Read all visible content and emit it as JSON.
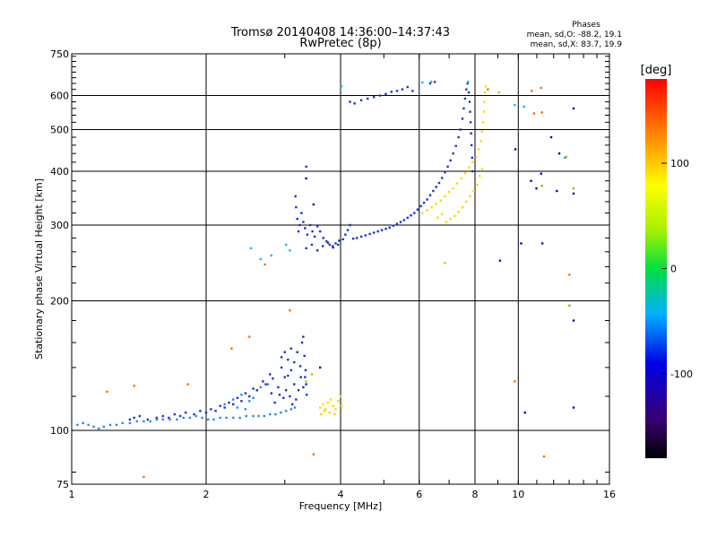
{
  "chart_data": {
    "type": "scatter",
    "title": "Tromsø 20140408 14:36:00–14:37:43",
    "subtitle": "RwPretec (8p)",
    "xlabel": "Frequency [MHz]",
    "ylabel": "Stationary phase Virtual Height [km]",
    "x_scale": "log",
    "y_scale": "log",
    "xlim": [
      1,
      16
    ],
    "ylim": [
      75,
      750
    ],
    "x_ticks": [
      1,
      2,
      4,
      6,
      8,
      10,
      16
    ],
    "x_tick_labels": [
      "1",
      "2",
      "4",
      "6",
      "8",
      "10",
      "16"
    ],
    "x_grid": [
      2,
      4,
      6,
      8,
      10
    ],
    "y_ticks": [
      75,
      100,
      200,
      300,
      400,
      500,
      600,
      750
    ],
    "y_tick_labels": [
      "75",
      "100",
      "200",
      "300",
      "400",
      "500",
      "600",
      "750"
    ],
    "y_grid": [
      100,
      200,
      300,
      400,
      500,
      600
    ],
    "grid": true,
    "stats_header": "Phases",
    "stats_o": "mean, sd,O: -88.2, 19.1",
    "stats_x": "mean, sd,X: 83.7, 19.9",
    "colorbar": {
      "label": "[deg]",
      "range": [
        -180,
        180
      ],
      "ticks": [
        100,
        0,
        -100
      ],
      "tick_labels": [
        "100",
        "0",
        "-100"
      ]
    },
    "series": [
      {
        "color": "#2a8ae0",
        "points": [
          [
            1.03,
            103
          ],
          [
            1.06,
            104
          ],
          [
            1.09,
            103
          ],
          [
            1.12,
            102
          ],
          [
            1.15,
            101
          ],
          [
            1.18,
            102
          ],
          [
            1.22,
            103
          ],
          [
            1.26,
            103
          ],
          [
            1.3,
            104
          ],
          [
            1.35,
            104
          ],
          [
            1.4,
            105
          ],
          [
            1.45,
            105
          ],
          [
            1.5,
            105
          ],
          [
            1.55,
            106
          ],
          [
            1.6,
            106
          ],
          [
            1.66,
            106
          ],
          [
            1.72,
            106
          ],
          [
            1.78,
            107
          ],
          [
            1.84,
            107
          ],
          [
            1.9,
            108
          ],
          [
            1.96,
            107
          ],
          [
            2.02,
            106
          ],
          [
            2.08,
            106
          ],
          [
            2.15,
            107
          ],
          [
            2.22,
            107
          ],
          [
            2.3,
            107
          ],
          [
            2.38,
            107
          ],
          [
            2.46,
            108
          ],
          [
            2.55,
            108
          ],
          [
            2.62,
            108
          ],
          [
            2.7,
            108
          ],
          [
            2.78,
            109
          ],
          [
            2.86,
            109
          ],
          [
            2.94,
            110
          ],
          [
            3.02,
            111
          ],
          [
            3.1,
            112
          ],
          [
            3.16,
            113
          ],
          [
            2.2,
            115
          ],
          [
            2.3,
            118
          ],
          [
            2.4,
            121
          ],
          [
            2.5,
            117
          ],
          [
            2.6,
            124
          ],
          [
            2.45,
            112
          ],
          [
            2.35,
            113
          ],
          [
            2.55,
            119
          ],
          [
            2.65,
            126
          ],
          [
            2.75,
            128
          ]
        ]
      },
      {
        "color": "#1e2fd6",
        "points": [
          [
            1.35,
            106
          ],
          [
            1.38,
            107
          ],
          [
            1.42,
            108
          ],
          [
            1.48,
            106
          ],
          [
            1.55,
            107
          ],
          [
            1.6,
            108
          ],
          [
            1.65,
            107
          ],
          [
            1.7,
            109
          ],
          [
            1.75,
            108
          ],
          [
            1.8,
            110
          ],
          [
            1.88,
            109
          ],
          [
            1.94,
            111
          ],
          [
            2.0,
            110
          ],
          [
            2.05,
            112
          ],
          [
            2.1,
            111
          ],
          [
            2.15,
            114
          ],
          [
            2.2,
            113
          ],
          [
            2.25,
            116
          ],
          [
            2.3,
            115
          ],
          [
            2.35,
            119
          ],
          [
            2.4,
            117
          ],
          [
            2.45,
            122
          ],
          [
            2.5,
            120
          ],
          [
            2.55,
            125
          ],
          [
            2.6,
            124
          ],
          [
            2.68,
            130
          ],
          [
            2.72,
            128
          ],
          [
            2.78,
            135
          ],
          [
            2.82,
            132
          ],
          [
            2.9,
            126
          ],
          [
            2.95,
            140
          ],
          [
            3.0,
            133
          ],
          [
            3.05,
            146
          ],
          [
            3.1,
            138
          ],
          [
            3.15,
            128
          ],
          [
            3.2,
            152
          ],
          [
            3.25,
            141
          ],
          [
            3.28,
            160
          ],
          [
            3.3,
            165
          ],
          [
            3.32,
            149
          ],
          [
            3.34,
            138
          ],
          [
            3.35,
            128
          ],
          [
            3.36,
            121
          ],
          [
            3.18,
            118
          ],
          [
            3.22,
            124
          ],
          [
            3.08,
            120
          ],
          [
            3.12,
            115
          ],
          [
            2.98,
            119
          ],
          [
            3.02,
            124
          ],
          [
            2.92,
            121
          ],
          [
            2.85,
            116
          ],
          [
            2.8,
            122
          ],
          [
            3.26,
            133
          ],
          [
            3.3,
            126
          ],
          [
            3.33,
            133
          ],
          [
            3.0,
            152
          ],
          [
            2.95,
            148
          ],
          [
            3.1,
            155
          ],
          [
            3.05,
            134
          ],
          [
            3.15,
            144
          ]
        ]
      },
      {
        "color": "#1e2fd6",
        "points": [
          [
            3.17,
            350
          ],
          [
            3.18,
            330
          ],
          [
            3.2,
            310
          ],
          [
            3.22,
            290
          ],
          [
            3.24,
            300
          ],
          [
            3.27,
            320
          ],
          [
            3.3,
            305
          ],
          [
            3.33,
            295
          ],
          [
            3.37,
            285
          ],
          [
            3.42,
            300
          ],
          [
            3.46,
            290
          ],
          [
            3.5,
            282
          ],
          [
            3.55,
            298
          ],
          [
            3.6,
            290
          ],
          [
            3.66,
            280
          ],
          [
            3.72,
            275
          ],
          [
            3.78,
            270
          ],
          [
            3.84,
            268
          ],
          [
            3.9,
            272
          ],
          [
            3.97,
            276
          ],
          [
            4.05,
            278
          ],
          [
            4.1,
            285
          ],
          [
            4.15,
            292
          ],
          [
            4.2,
            300
          ],
          [
            4.27,
            279
          ],
          [
            4.35,
            280
          ],
          [
            4.45,
            282
          ],
          [
            4.55,
            284
          ],
          [
            4.65,
            286
          ],
          [
            4.75,
            288
          ],
          [
            4.85,
            290
          ],
          [
            4.95,
            292
          ],
          [
            5.05,
            294
          ],
          [
            5.15,
            296
          ],
          [
            5.25,
            299
          ],
          [
            5.35,
            302
          ],
          [
            5.45,
            305
          ],
          [
            5.55,
            308
          ],
          [
            5.65,
            312
          ],
          [
            5.75,
            316
          ],
          [
            5.85,
            320
          ],
          [
            5.95,
            326
          ],
          [
            6.05,
            332
          ],
          [
            6.15,
            338
          ],
          [
            6.25,
            344
          ],
          [
            6.35,
            352
          ],
          [
            6.45,
            360
          ],
          [
            6.55,
            368
          ],
          [
            6.65,
            376
          ],
          [
            6.75,
            386
          ],
          [
            6.85,
            398
          ],
          [
            6.95,
            410
          ],
          [
            7.05,
            424
          ],
          [
            7.15,
            440
          ],
          [
            7.25,
            458
          ],
          [
            7.35,
            480
          ],
          [
            7.42,
            500
          ],
          [
            7.5,
            530
          ],
          [
            7.55,
            560
          ],
          [
            7.6,
            590
          ],
          [
            7.65,
            620
          ],
          [
            7.7,
            640
          ],
          [
            7.75,
            610
          ],
          [
            7.78,
            580
          ],
          [
            7.8,
            550
          ],
          [
            7.82,
            520
          ],
          [
            7.84,
            490
          ],
          [
            7.86,
            460
          ],
          [
            7.88,
            430
          ],
          [
            7.9,
            400
          ],
          [
            3.35,
            265
          ],
          [
            3.45,
            270
          ],
          [
            3.55,
            262
          ],
          [
            3.65,
            268
          ],
          [
            3.75,
            273
          ],
          [
            3.85,
            266
          ],
          [
            3.95,
            270
          ],
          [
            4.2,
            580
          ],
          [
            4.3,
            575
          ],
          [
            4.45,
            585
          ],
          [
            4.6,
            590
          ],
          [
            4.75,
            595
          ],
          [
            4.9,
            600
          ],
          [
            5.05,
            605
          ],
          [
            5.2,
            612
          ],
          [
            5.35,
            615
          ],
          [
            5.5,
            620
          ],
          [
            5.65,
            628
          ],
          [
            5.8,
            615
          ],
          [
            6.35,
            640
          ],
          [
            6.5,
            645
          ],
          [
            3.35,
            410
          ]
        ]
      },
      {
        "color": "#ffd600",
        "points": [
          [
            3.6,
            113
          ],
          [
            3.65,
            115
          ],
          [
            3.7,
            112
          ],
          [
            3.75,
            116
          ],
          [
            3.8,
            118
          ],
          [
            3.85,
            114
          ],
          [
            3.9,
            112
          ],
          [
            3.95,
            117
          ],
          [
            4.0,
            120
          ],
          [
            4.02,
            114
          ],
          [
            3.62,
            109
          ],
          [
            3.68,
            111
          ],
          [
            3.78,
            110
          ],
          [
            3.88,
            109
          ],
          [
            6.1,
            320
          ],
          [
            6.25,
            325
          ],
          [
            6.4,
            330
          ],
          [
            6.55,
            336
          ],
          [
            6.7,
            342
          ],
          [
            6.85,
            350
          ],
          [
            7.0,
            358
          ],
          [
            7.15,
            365
          ],
          [
            7.3,
            375
          ],
          [
            7.45,
            385
          ],
          [
            7.6,
            396
          ],
          [
            7.75,
            408
          ],
          [
            7.9,
            420
          ],
          [
            8.05,
            432
          ],
          [
            8.15,
            450
          ],
          [
            8.25,
            470
          ],
          [
            8.3,
            495
          ],
          [
            8.35,
            520
          ],
          [
            8.38,
            550
          ],
          [
            8.4,
            580
          ],
          [
            8.42,
            610
          ],
          [
            8.44,
            630
          ],
          [
            8.3,
            405
          ],
          [
            8.2,
            390
          ],
          [
            8.1,
            372
          ],
          [
            7.95,
            360
          ],
          [
            7.8,
            350
          ],
          [
            7.65,
            340
          ],
          [
            7.5,
            330
          ],
          [
            7.35,
            322
          ],
          [
            7.2,
            315
          ],
          [
            7.05,
            310
          ],
          [
            6.9,
            305
          ],
          [
            6.75,
            318
          ],
          [
            6.6,
            312
          ]
        ]
      },
      {
        "color": "#ff6a00",
        "points": [
          [
            1.2,
            123
          ],
          [
            1.38,
            127
          ],
          [
            1.45,
            78
          ],
          [
            1.82,
            128
          ],
          [
            2.28,
            155
          ],
          [
            2.5,
            165
          ],
          [
            2.71,
            243
          ],
          [
            3.08,
            190
          ],
          [
            3.48,
            88
          ],
          [
            8.55,
            620
          ],
          [
            9.82,
            130
          ],
          [
            10.72,
            615
          ],
          [
            10.85,
            545
          ],
          [
            11.25,
            625
          ],
          [
            11.3,
            548
          ],
          [
            11.42,
            87
          ],
          [
            13.02,
            230
          ]
        ]
      },
      {
        "color": "#00bfff",
        "points": [
          [
            2.52,
            265
          ],
          [
            2.65,
            250
          ],
          [
            2.8,
            255
          ],
          [
            3.02,
            270
          ],
          [
            3.08,
            262
          ],
          [
            4.02,
            630
          ],
          [
            6.1,
            643
          ],
          [
            6.38,
            646
          ],
          [
            7.72,
            646
          ],
          [
            9.82,
            570
          ],
          [
            10.3,
            565
          ],
          [
            12.7,
            430
          ]
        ]
      },
      {
        "color": "#7df000",
        "points": [
          [
            3.35,
            130
          ],
          [
            3.45,
            135
          ],
          [
            6.85,
            245
          ],
          [
            9.05,
            610
          ]
        ]
      },
      {
        "color": "#0a0aa8",
        "points": [
          [
            3.35,
            385
          ],
          [
            3.48,
            335
          ],
          [
            3.6,
            140
          ],
          [
            9.85,
            450
          ],
          [
            10.15,
            272
          ],
          [
            10.35,
            110
          ],
          [
            10.68,
            380
          ],
          [
            10.98,
            365
          ],
          [
            11.25,
            395
          ],
          [
            11.32,
            272
          ],
          [
            11.85,
            480
          ],
          [
            12.2,
            360
          ],
          [
            12.35,
            440
          ],
          [
            13.3,
            560
          ],
          [
            13.3,
            180
          ],
          [
            13.3,
            113
          ],
          [
            13.3,
            355
          ],
          [
            9.1,
            248
          ]
        ]
      },
      {
        "color": "#c4a000",
        "points": [
          [
            11.3,
            370
          ],
          [
            13.3,
            365
          ],
          [
            12.8,
            432
          ],
          [
            13.02,
            195
          ]
        ]
      }
    ]
  }
}
